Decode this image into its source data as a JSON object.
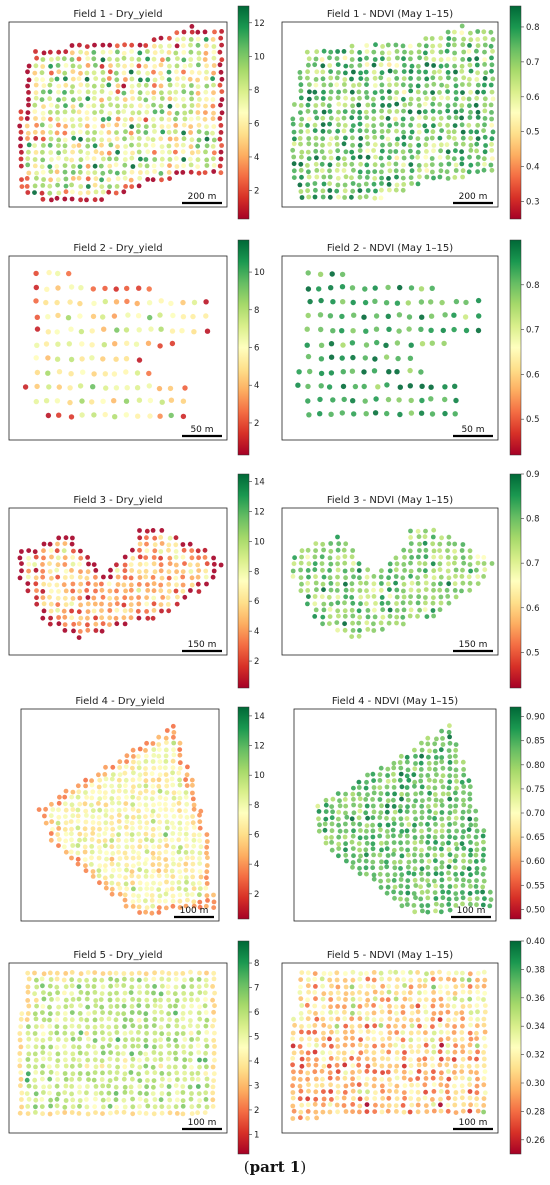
{
  "caption": {
    "paren_open": "(",
    "text": "part 1",
    "paren_close": ")"
  },
  "colormap": "RdYlGn",
  "chart_data": [
    {
      "type": "heatmap",
      "title": "Field 1 - Dry_yield",
      "field": 1,
      "variable": "Dry_yield",
      "scale_bar": "200 m",
      "colorbar_ticks": [
        2,
        4,
        6,
        8,
        10,
        12
      ],
      "colorbar_range": [
        0.3,
        13.0
      ],
      "field_shape": "field1",
      "typical_value": 7.3,
      "spread": 2.4
    },
    {
      "type": "heatmap",
      "title": "Field 1 - NDVI (May 1–15)",
      "field": 1,
      "variable": "NDVI",
      "scale_bar": "200 m",
      "colorbar_ticks": [
        0.3,
        0.4,
        0.5,
        0.6,
        0.7,
        0.8
      ],
      "colorbar_range": [
        0.25,
        0.86
      ],
      "field_shape": "field1",
      "typical_value": 0.72,
      "spread": 0.08
    },
    {
      "type": "heatmap",
      "title": "Field 2 - Dry_yield",
      "field": 2,
      "variable": "Dry_yield",
      "scale_bar": "50 m",
      "colorbar_ticks": [
        2,
        4,
        6,
        8,
        10
      ],
      "colorbar_range": [
        0.3,
        11.7
      ],
      "field_shape": "field2",
      "typical_value": 5.6,
      "spread": 1.4
    },
    {
      "type": "heatmap",
      "title": "Field 2 - NDVI (May 1–15)",
      "field": 2,
      "variable": "NDVI",
      "scale_bar": "50 m",
      "colorbar_ticks": [
        0.5,
        0.6,
        0.7,
        0.8
      ],
      "colorbar_range": [
        0.42,
        0.9
      ],
      "field_shape": "field2",
      "typical_value": 0.83,
      "spread": 0.04
    },
    {
      "type": "heatmap",
      "title": "Field 3 - Dry_yield",
      "field": 3,
      "variable": "Dry_yield",
      "scale_bar": "150 m",
      "colorbar_ticks": [
        2,
        4,
        6,
        8,
        10,
        12,
        14
      ],
      "colorbar_range": [
        0.2,
        14.5
      ],
      "field_shape": "field3",
      "typical_value": 4.8,
      "spread": 1.8
    },
    {
      "type": "heatmap",
      "title": "Field 3 - NDVI (May 1–15)",
      "field": 3,
      "variable": "NDVI",
      "scale_bar": "150 m",
      "colorbar_ticks": [
        0.5,
        0.6,
        0.7,
        0.8,
        0.9
      ],
      "colorbar_range": [
        0.42,
        0.9
      ],
      "field_shape": "field3",
      "typical_value": 0.78,
      "spread": 0.05
    },
    {
      "type": "heatmap",
      "title": "Field 4 - Dry_yield",
      "field": 4,
      "variable": "Dry_yield",
      "scale_bar": "100 m",
      "colorbar_ticks": [
        2,
        4,
        6,
        8,
        10,
        12,
        14
      ],
      "colorbar_range": [
        0.3,
        14.6
      ],
      "field_shape": "field4",
      "typical_value": 7.4,
      "spread": 1.2
    },
    {
      "type": "heatmap",
      "title": "Field 4 - NDVI (May 1–15)",
      "field": 4,
      "variable": "NDVI",
      "scale_bar": "100 m",
      "colorbar_ticks": [
        0.5,
        0.55,
        0.6,
        0.65,
        0.7,
        0.75,
        0.8,
        0.85,
        0.9
      ],
      "colorbar_range": [
        0.48,
        0.92
      ],
      "field_shape": "field4",
      "typical_value": 0.83,
      "spread": 0.035
    },
    {
      "type": "heatmap",
      "title": "Field 5 - Dry_yield",
      "field": 5,
      "variable": "Dry_yield",
      "scale_bar": "100 m",
      "colorbar_ticks": [
        1,
        2,
        3,
        4,
        5,
        6,
        7,
        8
      ],
      "colorbar_range": [
        0.2,
        8.9
      ],
      "field_shape": "field5",
      "typical_value": 5.7,
      "spread": 0.7
    },
    {
      "type": "heatmap",
      "title": "Field 5 - NDVI (May 1–15)",
      "field": 5,
      "variable": "NDVI",
      "scale_bar": "100 m",
      "colorbar_ticks": [
        0.26,
        0.28,
        0.3,
        0.32,
        0.34,
        0.36,
        0.38,
        0.4
      ],
      "colorbar_range": [
        0.25,
        0.4
      ],
      "field_shape": "field5",
      "typical_value": 0.305,
      "spread": 0.02
    }
  ]
}
